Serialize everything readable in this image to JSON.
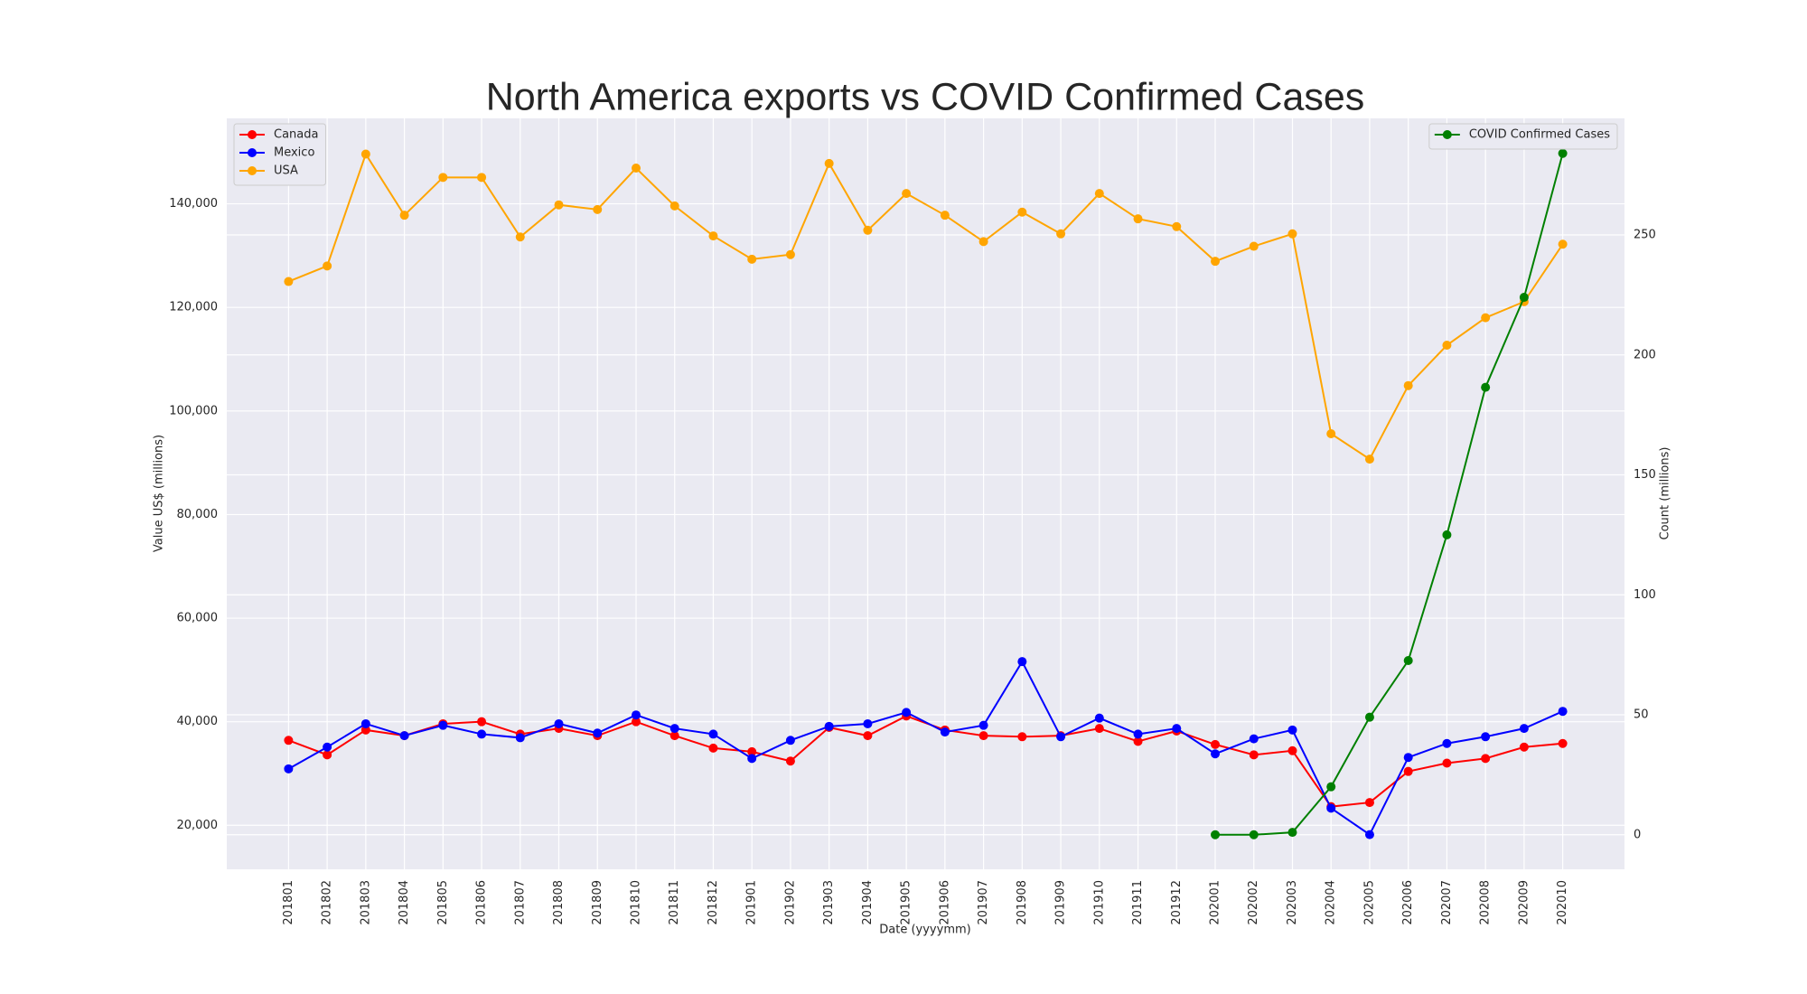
{
  "chart_data": {
    "type": "line",
    "title": "North America exports vs COVID Confirmed Cases",
    "x_label": "Date (yyyymm)",
    "y_label": "Value US$ (millions)",
    "y2_label": "Count (millions)",
    "categories": [
      "201801",
      "201802",
      "201803",
      "201804",
      "201805",
      "201806",
      "201807",
      "201808",
      "201809",
      "201810",
      "201811",
      "201812",
      "201901",
      "201902",
      "201903",
      "201904",
      "201905",
      "201906",
      "201907",
      "201908",
      "201909",
      "201910",
      "201911",
      "201912",
      "202001",
      "202002",
      "202003",
      "202004",
      "202005",
      "202006",
      "202007",
      "202008",
      "202009",
      "202010"
    ],
    "series": [
      {
        "name": "Canada",
        "color": "#ff0000",
        "values": [
          36400,
          33600,
          38400,
          37300,
          39600,
          40000,
          37600,
          38700,
          37300,
          40000,
          37300,
          34900,
          34200,
          32400,
          38900,
          37300,
          41100,
          38400,
          37300,
          37100,
          37300,
          38700,
          36200,
          38200,
          35600,
          33600,
          34400,
          23600,
          24400,
          30400,
          32000,
          32900,
          35100,
          35800
        ]
      },
      {
        "name": "Mexico",
        "color": "#0000ff",
        "values": [
          30900,
          35100,
          39600,
          37300,
          39300,
          37600,
          36900,
          39600,
          37800,
          41300,
          38700,
          37600,
          32900,
          36400,
          39100,
          39600,
          41800,
          38000,
          39300,
          51600,
          37100,
          40700,
          37600,
          38700,
          33800,
          36700,
          38400,
          23300,
          18200,
          33100,
          35800,
          37100,
          38700,
          42000
        ]
      },
      {
        "name": "USA",
        "color": "#ffa500",
        "values": [
          125000,
          128000,
          149600,
          137800,
          145100,
          145100,
          133600,
          139800,
          138900,
          146900,
          139600,
          133800,
          129300,
          130200,
          147800,
          134900,
          142000,
          137800,
          132700,
          138400,
          134200,
          142000,
          137100,
          135600,
          128900,
          131800,
          134200,
          95600,
          90700,
          104900,
          112700,
          118000,
          121100,
          132200
        ]
      },
      {
        "name": "COVID Confirmed Cases",
        "color": "#008000",
        "axis": "y2",
        "values": [
          null,
          null,
          null,
          null,
          null,
          null,
          null,
          null,
          null,
          null,
          null,
          null,
          null,
          null,
          null,
          null,
          null,
          null,
          null,
          null,
          null,
          null,
          null,
          null,
          0,
          0,
          1,
          20,
          49,
          72.6,
          125,
          186.5,
          224,
          284
        ]
      }
    ],
    "ylim": [
      11500,
      156500
    ],
    "yticks": [
      {
        "value": 20000,
        "label": "20,000"
      },
      {
        "value": 40000,
        "label": "40,000"
      },
      {
        "value": 60000,
        "label": "60,000"
      },
      {
        "value": 80000,
        "label": "80,000"
      },
      {
        "value": 100000,
        "label": "100,000"
      },
      {
        "value": 120000,
        "label": "120,000"
      },
      {
        "value": 140000,
        "label": "140,000"
      }
    ],
    "y2lim": [
      -14.4,
      298.6
    ],
    "y2ticks": [
      0,
      50,
      100,
      150,
      200,
      250
    ],
    "grid": true,
    "legend": {
      "y": "upper left",
      "y2": "upper right"
    }
  }
}
